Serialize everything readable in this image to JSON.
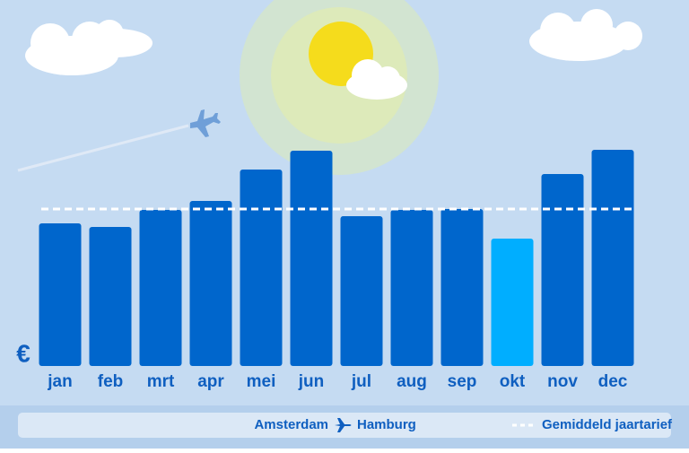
{
  "chart_data": {
    "type": "bar",
    "currency_symbol": "€",
    "categories": [
      "jan",
      "feb",
      "mrt",
      "apr",
      "mei",
      "jun",
      "jul",
      "aug",
      "sep",
      "okt",
      "nov",
      "dec"
    ],
    "values": [
      159,
      155,
      174,
      184,
      219,
      240,
      167,
      174,
      175,
      142,
      214,
      241
    ],
    "colors": [
      "#0066cc",
      "#0066cc",
      "#0066cc",
      "#0066cc",
      "#0066cc",
      "#0066cc",
      "#0066cc",
      "#0066cc",
      "#0066cc",
      "#00aeff",
      "#0066cc",
      "#0066cc"
    ],
    "ylim": [
      0,
      250
    ],
    "average": {
      "label": "Gemiddeld jaartarief",
      "value": 175,
      "color": "#ffffff"
    },
    "route": {
      "from": "Amsterdam",
      "to": "Hamburg"
    }
  }
}
